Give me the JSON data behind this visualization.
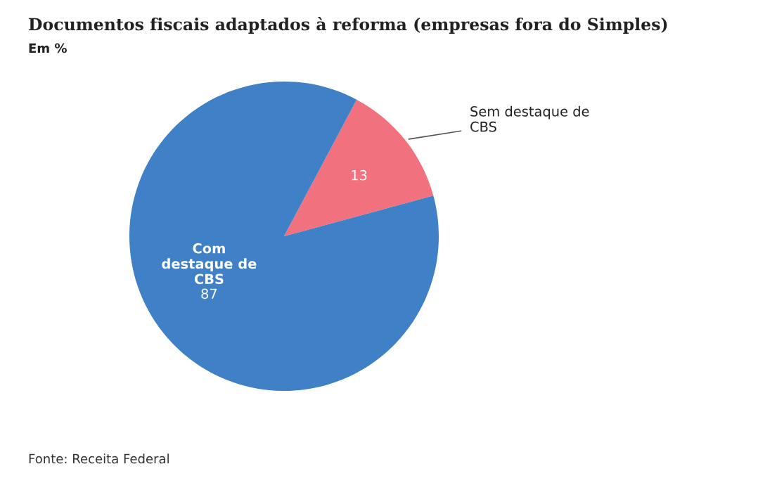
{
  "chart_data": {
    "type": "pie",
    "title": "Documentos fiscais adaptados à reforma (empresas fora do Simples)",
    "subtitle": "Em %",
    "categories": [
      "Sem destaque de CBS",
      "Com destaque de CBS"
    ],
    "values": [
      13,
      87
    ],
    "colors": [
      "#f2717f",
      "#3f80c6"
    ],
    "data_labels": true,
    "legend": false,
    "annotations": [
      "Fonte: Receita Federal"
    ]
  }
}
